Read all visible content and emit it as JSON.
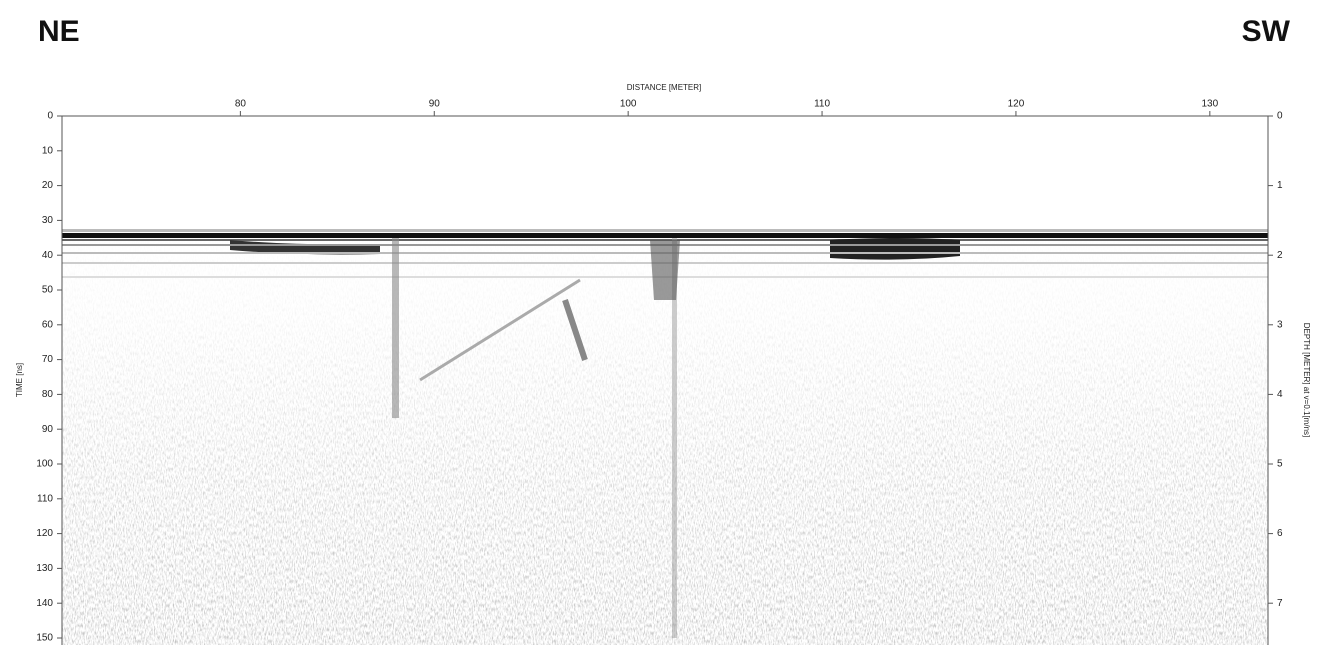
{
  "chart_data": {
    "type": "radargram",
    "title_left": "NE",
    "title_right": "SW",
    "xlabel": "DISTANCE [METER]",
    "ylabel": "TIME [ns]",
    "y2label": "DEPTH [METER] at v=0.1[m/ns]",
    "xlim": [
      70.8,
      133.0
    ],
    "xticks": [
      80,
      90,
      100,
      110,
      120,
      130
    ],
    "ylim": [
      0,
      150
    ],
    "yticks": [
      0,
      10,
      20,
      30,
      40,
      50,
      60,
      70,
      80,
      90,
      100,
      110,
      120,
      130,
      140,
      150
    ],
    "y2lim": [
      0,
      7.5
    ],
    "y2ticks": [
      0,
      1,
      2,
      3,
      4,
      5,
      6,
      7
    ]
  }
}
